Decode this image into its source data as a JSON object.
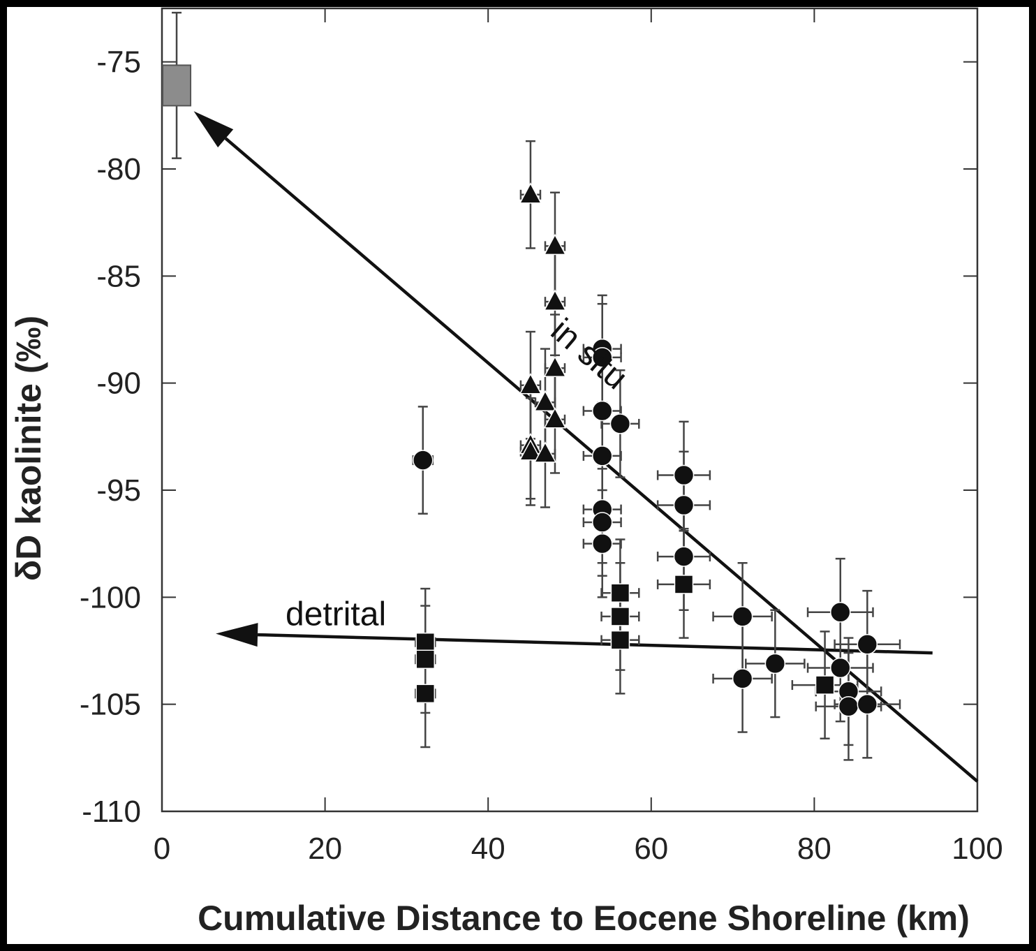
{
  "chart_data": {
    "type": "scatter",
    "xlabel": "Cumulative Distance to Eocene Shoreline (km)",
    "ylabel": "δD kaolinite (‰)",
    "xlim": [
      0,
      100
    ],
    "ylim": [
      -110,
      -72.5
    ],
    "xticks": [
      0,
      20,
      40,
      60,
      80,
      100
    ],
    "yticks": [
      -75,
      -80,
      -85,
      -90,
      -95,
      -100,
      -105,
      -110
    ],
    "grid": false,
    "legend": "none",
    "colors": {
      "marker": "#111111",
      "reference_box": "#8c8c8c",
      "error_bar": "#444444",
      "axis": "#333333"
    },
    "series": [
      {
        "marker": "square-gray",
        "points": [
          {
            "x": 1.8,
            "y": -76.1,
            "yerr": 3.4,
            "xerr": 0
          }
        ]
      },
      {
        "marker": "triangle",
        "points": [
          {
            "x": 45.2,
            "y": -81.2,
            "yerr": 2.5,
            "xerr": 1.2
          },
          {
            "x": 48.2,
            "y": -83.6,
            "yerr": 2.5,
            "xerr": 1.2
          },
          {
            "x": 48.2,
            "y": -86.2,
            "yerr": 2.5,
            "xerr": 1.2
          },
          {
            "x": 48.2,
            "y": -89.3,
            "yerr": 2.5,
            "xerr": 1.2
          },
          {
            "x": 45.2,
            "y": -90.1,
            "yerr": 2.5,
            "xerr": 1.2
          },
          {
            "x": 47.0,
            "y": -90.9,
            "yerr": 2.5,
            "xerr": 1.2
          },
          {
            "x": 48.2,
            "y": -91.7,
            "yerr": 2.5,
            "xerr": 1.2
          },
          {
            "x": 45.2,
            "y": -92.9,
            "yerr": 2.5,
            "xerr": 1.2
          },
          {
            "x": 45.2,
            "y": -93.2,
            "yerr": 2.5,
            "xerr": 1.2
          },
          {
            "x": 47.0,
            "y": -93.3,
            "yerr": 2.5,
            "xerr": 1.2
          }
        ]
      },
      {
        "marker": "circle",
        "points": [
          {
            "x": 32.0,
            "y": -93.6,
            "yerr": 2.5,
            "xerr": 1.2
          },
          {
            "x": 54.0,
            "y": -88.4,
            "yerr": 2.5,
            "xerr": 2.3
          },
          {
            "x": 54.0,
            "y": -88.8,
            "yerr": 2.5,
            "xerr": 2.3
          },
          {
            "x": 54.0,
            "y": -91.3,
            "yerr": 2.5,
            "xerr": 2.3
          },
          {
            "x": 56.2,
            "y": -91.9,
            "yerr": 2.5,
            "xerr": 2.3
          },
          {
            "x": 54.0,
            "y": -93.4,
            "yerr": 2.5,
            "xerr": 2.3
          },
          {
            "x": 54.0,
            "y": -95.9,
            "yerr": 2.5,
            "xerr": 2.3
          },
          {
            "x": 54.0,
            "y": -96.5,
            "yerr": 2.5,
            "xerr": 2.3
          },
          {
            "x": 54.0,
            "y": -97.5,
            "yerr": 2.5,
            "xerr": 2.3
          },
          {
            "x": 64.0,
            "y": -94.3,
            "yerr": 2.5,
            "xerr": 3.2
          },
          {
            "x": 64.0,
            "y": -95.7,
            "yerr": 2.5,
            "xerr": 3.2
          },
          {
            "x": 64.0,
            "y": -98.1,
            "yerr": 2.5,
            "xerr": 3.2
          },
          {
            "x": 71.2,
            "y": -100.9,
            "yerr": 2.5,
            "xerr": 3.6
          },
          {
            "x": 71.2,
            "y": -103.8,
            "yerr": 2.5,
            "xerr": 3.6
          },
          {
            "x": 75.2,
            "y": -103.1,
            "yerr": 2.5,
            "xerr": 3.6
          },
          {
            "x": 83.2,
            "y": -100.7,
            "yerr": 2.5,
            "xerr": 4.0
          },
          {
            "x": 86.5,
            "y": -102.2,
            "yerr": 2.5,
            "xerr": 4.0
          },
          {
            "x": 83.2,
            "y": -103.3,
            "yerr": 2.5,
            "xerr": 4.0
          },
          {
            "x": 84.2,
            "y": -104.4,
            "yerr": 2.5,
            "xerr": 4.0
          },
          {
            "x": 84.2,
            "y": -105.1,
            "yerr": 2.5,
            "xerr": 4.0
          },
          {
            "x": 86.5,
            "y": -105.0,
            "yerr": 2.5,
            "xerr": 4.0
          }
        ]
      },
      {
        "marker": "square",
        "points": [
          {
            "x": 32.3,
            "y": -102.1,
            "yerr": 2.5,
            "xerr": 1.2
          },
          {
            "x": 32.3,
            "y": -102.9,
            "yerr": 2.5,
            "xerr": 1.2
          },
          {
            "x": 32.3,
            "y": -104.5,
            "yerr": 2.5,
            "xerr": 1.2
          },
          {
            "x": 56.2,
            "y": -99.8,
            "yerr": 2.5,
            "xerr": 2.3
          },
          {
            "x": 56.2,
            "y": -100.9,
            "yerr": 2.5,
            "xerr": 2.3
          },
          {
            "x": 56.2,
            "y": -102.0,
            "yerr": 2.5,
            "xerr": 2.3
          },
          {
            "x": 64.0,
            "y": -99.4,
            "yerr": 2.5,
            "xerr": 3.2
          },
          {
            "x": 81.3,
            "y": -104.1,
            "yerr": 2.5,
            "xerr": 4.0
          }
        ]
      }
    ],
    "trend_lines": [
      {
        "label": "in situ",
        "from": [
          100,
          -108.6
        ],
        "to": [
          3.9,
          -77.3
        ],
        "arrow": "end"
      },
      {
        "label": "detrital",
        "from": [
          94.5,
          -102.6
        ],
        "to": [
          6.6,
          -101.7
        ],
        "arrow": "end"
      }
    ]
  }
}
